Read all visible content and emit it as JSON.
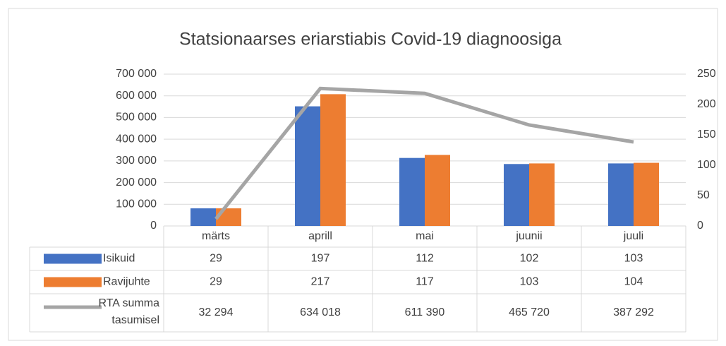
{
  "chart_data": {
    "type": "bar",
    "title": "Statsionaarses eriarstiabis Covid-19 diagnoosiga",
    "categories": [
      "märts",
      "aprill",
      "mai",
      "juunii",
      "juuli"
    ],
    "series": [
      {
        "name": "Isikuid",
        "color": "#4472c4",
        "type": "bar",
        "axis": "y2",
        "values": [
          29,
          197,
          112,
          102,
          103
        ]
      },
      {
        "name": "Ravijuhte",
        "color": "#ed7d31",
        "type": "bar",
        "axis": "y2",
        "values": [
          29,
          217,
          117,
          103,
          104
        ]
      },
      {
        "name": "RTA summa tasumisel",
        "color": "#a5a5a5",
        "type": "line",
        "axis": "y",
        "values": [
          32294,
          634018,
          611390,
          465720,
          387292
        ],
        "value_labels": [
          "32 294",
          "634 018",
          "611 390",
          "465 720",
          "387 292"
        ]
      }
    ],
    "ylim": [
      0,
      700000
    ],
    "yticks": [
      0,
      {
        "value": 100000,
        "label": "100 000"
      },
      {
        "value": 200000,
        "label": "200 000"
      },
      {
        "value": 300000,
        "label": "300 000"
      },
      {
        "value": 400000,
        "label": "400 000"
      },
      {
        "value": 500000,
        "label": "500 000"
      },
      {
        "value": 600000,
        "label": "600 000"
      },
      {
        "value": 700000,
        "label": "700 000"
      }
    ],
    "y2lim": [
      0,
      250
    ],
    "y2ticks": [
      0,
      50,
      100,
      150,
      200,
      250
    ],
    "grid": true
  }
}
